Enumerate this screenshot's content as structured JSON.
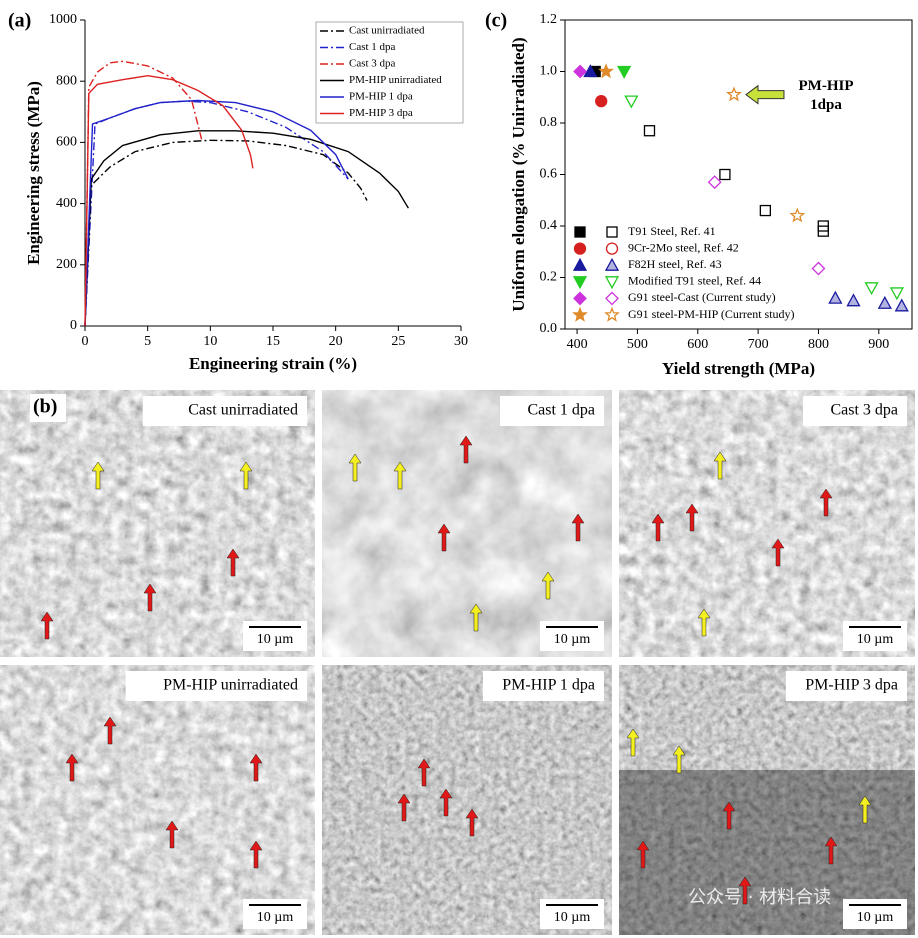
{
  "chart_data": [
    {
      "type": "line",
      "panel_label": "(a)",
      "x_label": "Engineering strain (%)",
      "y_label": "Engineering stress (MPa)",
      "xlim": [
        0,
        30
      ],
      "xticks": [
        0,
        5,
        10,
        15,
        20,
        25,
        30
      ],
      "ylim": [
        0,
        1000
      ],
      "yticks": [
        0,
        200,
        400,
        600,
        800,
        1000
      ],
      "grid": false,
      "legend": "top-right",
      "series": [
        {
          "name": "Cast unirradiated",
          "color": "#000000",
          "dash": "dashdot",
          "x": [
            0,
            0.5,
            2,
            4,
            7,
            10,
            13,
            16,
            19,
            21,
            22,
            22.5
          ],
          "values": [
            0,
            460,
            520,
            570,
            600,
            607,
            605,
            590,
            560,
            500,
            450,
            410
          ]
        },
        {
          "name": "Cast 1 dpa",
          "color": "#2222cc",
          "dash": "dashdot",
          "x": [
            0,
            0.8,
            2,
            4,
            6,
            8,
            10,
            13,
            16,
            19,
            21
          ],
          "values": [
            0,
            660,
            680,
            710,
            730,
            735,
            730,
            700,
            650,
            570,
            480
          ]
        },
        {
          "name": "Cast 3 dpa",
          "color": "#dd2222",
          "dash": "dashdot",
          "x": [
            0,
            0.3,
            1,
            2,
            3,
            5,
            7,
            8.5,
            9.3
          ],
          "values": [
            0,
            780,
            830,
            860,
            865,
            850,
            810,
            740,
            610
          ]
        },
        {
          "name": "PM-HIP unirradiated",
          "color": "#000000",
          "dash": "solid",
          "x": [
            0,
            0.5,
            1.5,
            3,
            6,
            9,
            12,
            15,
            18,
            21,
            23.5,
            25,
            25.8
          ],
          "values": [
            0,
            480,
            540,
            590,
            625,
            638,
            638,
            630,
            610,
            570,
            500,
            440,
            385
          ]
        },
        {
          "name": "PM-HIP 1 dpa",
          "color": "#2222cc",
          "dash": "solid",
          "x": [
            0,
            0.6,
            2,
            4,
            6,
            9,
            12,
            15,
            18,
            20,
            21
          ],
          "values": [
            0,
            660,
            680,
            710,
            730,
            737,
            730,
            700,
            640,
            560,
            480
          ]
        },
        {
          "name": "PM-HIP 3 dpa",
          "color": "#dd2222",
          "dash": "solid",
          "x": [
            0,
            0.3,
            1,
            3,
            5,
            7,
            9,
            11,
            12.5,
            13.2,
            13.4
          ],
          "values": [
            0,
            760,
            790,
            805,
            818,
            805,
            770,
            720,
            640,
            560,
            515
          ]
        }
      ]
    },
    {
      "type": "scatter",
      "panel_label": "(c)",
      "x_label": "Yield strength (MPa)",
      "y_label": "Uniform elongation (% Unirradiated)",
      "xlim": [
        380,
        955
      ],
      "xticks": [
        400,
        500,
        600,
        700,
        800,
        900
      ],
      "ylim": [
        0,
        1.2
      ],
      "yticks": [
        {
          "value": 0,
          "label": "0.0"
        },
        0.2,
        0.4,
        0.6,
        0.8,
        {
          "value": 1,
          "label": "1.0"
        },
        1.2
      ],
      "grid": false,
      "legend": "bottom-left",
      "annotation": {
        "lines": [
          "PM-HIP",
          "1dpa"
        ],
        "x": 660,
        "y": 0.91
      },
      "series": [
        {
          "name": "T91 Steel, Ref. 41",
          "marker": "square",
          "color": "#000000",
          "filled": {
            "x": [
              430
            ],
            "values": [
              1.0
            ]
          },
          "open": {
            "x": [
              520,
              645,
              712,
              808,
              808
            ],
            "values": [
              0.77,
              0.6,
              0.46,
              0.4,
              0.38
            ]
          }
        },
        {
          "name": "9Cr-2Mo steel, Ref. 42",
          "marker": "circle",
          "color": "#d62020",
          "filled": {
            "x": [
              440
            ],
            "values": [
              0.885
            ]
          },
          "open": {
            "x": [],
            "values": []
          }
        },
        {
          "name": "F82H steel, Ref. 43",
          "marker": "triangle",
          "color": "#1a1aa0",
          "filled": {
            "x": [
              422
            ],
            "values": [
              1.0
            ]
          },
          "open": {
            "x": [
              828,
              858,
              910,
              938
            ],
            "values": [
              0.12,
              0.11,
              0.1,
              0.09
            ]
          }
        },
        {
          "name": "Modified T91 steel, Ref. 44",
          "marker": "triangle-down",
          "color": "#22cc22",
          "filled": {
            "x": [
              478
            ],
            "values": [
              1.0
            ]
          },
          "open": {
            "x": [
              490,
              888,
              930
            ],
            "values": [
              0.885,
              0.16,
              0.14
            ]
          }
        },
        {
          "name": "G91 steel-Cast (Current study)",
          "marker": "diamond",
          "color": "#cc33dd",
          "filled": {
            "x": [
              405
            ],
            "values": [
              1.0
            ]
          },
          "open": {
            "x": [
              628,
              800
            ],
            "values": [
              0.57,
              0.235
            ]
          }
        },
        {
          "name": "G91 steel-PM-HIP (Current study)",
          "marker": "star",
          "color": "#e08a2a",
          "filled": {
            "x": [
              448
            ],
            "values": [
              1.0
            ]
          },
          "open": {
            "x": [
              660,
              765
            ],
            "values": [
              0.91,
              0.44
            ]
          }
        }
      ]
    }
  ],
  "figure_b": {
    "panel_label": "(b)",
    "micrographs": [
      {
        "label": "Cast unirradiated",
        "scale_bar": "10 µm"
      },
      {
        "label": "Cast 1 dpa",
        "scale_bar": "10 µm"
      },
      {
        "label": "Cast 3 dpa",
        "scale_bar": "10 µm"
      },
      {
        "label": "PM-HIP unirradiated",
        "scale_bar": "10 µm"
      },
      {
        "label": "PM-HIP 1 dpa",
        "scale_bar": "10 µm"
      },
      {
        "label": "PM-HIP 3 dpa",
        "scale_bar": "10 µm"
      }
    ]
  },
  "watermark": "公众号 · 材料合读"
}
